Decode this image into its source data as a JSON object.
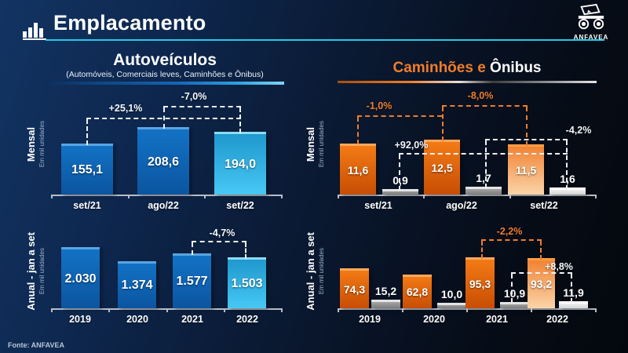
{
  "header": {
    "title": "Emplacamento",
    "logo_text": "ANFAVEA"
  },
  "footer": {
    "source": "Fonte: ANFAVEA"
  },
  "sections": {
    "autoveiculos": {
      "title": "Autoveículos",
      "subtitle": "(Automóveis, Comerciais leves, Caminhões e Ônibus)"
    },
    "caminhoes_onibus": {
      "title_orange": "Caminhões e",
      "title_white": " Ônibus"
    }
  },
  "colors": {
    "accent_cyan": "#27c9e6",
    "orange": "#ef7d2a",
    "blue_bar": "#0f6ab8",
    "light_blue_bar": "#35b4e8",
    "annotation_white": "#eef2f6"
  },
  "chart_data": [
    {
      "id": "autoveiculos_mensal",
      "type": "bar",
      "title": "Autoveículos - Mensal",
      "ylabel": "Mensal",
      "units": "Em mil unidades",
      "categories": [
        "set/21",
        "ago/22",
        "set/22"
      ],
      "values": [
        155.1,
        208.6,
        194.0
      ],
      "value_labels": [
        "155,1",
        "208,6",
        "194,0"
      ],
      "bar_colors": [
        "blue",
        "blue",
        "lightblue"
      ],
      "annotations": [
        {
          "label": "+25,1%",
          "from": "set/21",
          "to": "set/22"
        },
        {
          "label": "-7,0%",
          "from": "ago/22",
          "to": "set/22"
        }
      ]
    },
    {
      "id": "autoveiculos_anual",
      "type": "bar",
      "title": "Autoveículos - Anual jan a set",
      "ylabel": "Anual - jan a set",
      "units": "Em mil unidades",
      "categories": [
        "2019",
        "2020",
        "2021",
        "2022"
      ],
      "values": [
        2030,
        1374,
        1577,
        1503
      ],
      "value_labels": [
        "2.030",
        "1.374",
        "1.577",
        "1.503"
      ],
      "bar_colors": [
        "blue",
        "blue",
        "blue",
        "lightblue"
      ],
      "annotations": [
        {
          "label": "-4,7%",
          "from": "2021",
          "to": "2022"
        }
      ]
    },
    {
      "id": "caminhoes_mensal",
      "type": "bar",
      "title": "Caminhões e Ônibus - Mensal",
      "ylabel": "Mensal",
      "units": "Em mil unidades",
      "categories": [
        "set/21",
        "ago/22",
        "set/22"
      ],
      "series": [
        {
          "name": "Caminhões",
          "values": [
            11.6,
            12.5,
            11.5
          ],
          "value_labels": [
            "11,6",
            "12,5",
            "11,5"
          ],
          "colors": [
            "orange",
            "orange",
            "lightorange"
          ]
        },
        {
          "name": "Ônibus",
          "values": [
            0.9,
            1.7,
            1.6
          ],
          "value_labels": [
            "0,9",
            "1,7",
            "1,6"
          ],
          "colors": [
            "gray",
            "gray",
            "white"
          ]
        }
      ],
      "annotations": [
        {
          "label": "-1,0%",
          "series": "Caminhões",
          "from": "set/21",
          "to": "set/22"
        },
        {
          "label": "-8,0%",
          "series": "Caminhões",
          "from": "ago/22",
          "to": "set/22"
        },
        {
          "label": "+92,0%",
          "series": "Ônibus",
          "from": "set/21",
          "to": "ago/22"
        },
        {
          "label": "-4,2%",
          "series": "Ônibus",
          "from": "ago/22",
          "to": "set/22"
        }
      ]
    },
    {
      "id": "caminhoes_anual",
      "type": "bar",
      "title": "Caminhões e Ônibus - Anual jan a set",
      "ylabel": "Anual - jan a set",
      "units": "Em mil unidades",
      "categories": [
        "2019",
        "2020",
        "2021",
        "2022"
      ],
      "series": [
        {
          "name": "Caminhões",
          "values": [
            74.3,
            62.8,
            95.3,
            93.2
          ],
          "value_labels": [
            "74,3",
            "62,8",
            "95,3",
            "93,2"
          ],
          "colors": [
            "orange",
            "orange",
            "orange",
            "lightorange"
          ]
        },
        {
          "name": "Ônibus",
          "values": [
            15.2,
            10.0,
            10.9,
            11.9
          ],
          "value_labels": [
            "15,2",
            "10,0",
            "10,9",
            "11,9"
          ],
          "colors": [
            "gray",
            "gray",
            "gray",
            "white"
          ]
        }
      ],
      "annotations": [
        {
          "label": "-2,2%",
          "series": "Caminhões",
          "from": "2021",
          "to": "2022"
        },
        {
          "label": "+8,8%",
          "series": "Ônibus",
          "from": "2021",
          "to": "2022"
        }
      ]
    }
  ]
}
